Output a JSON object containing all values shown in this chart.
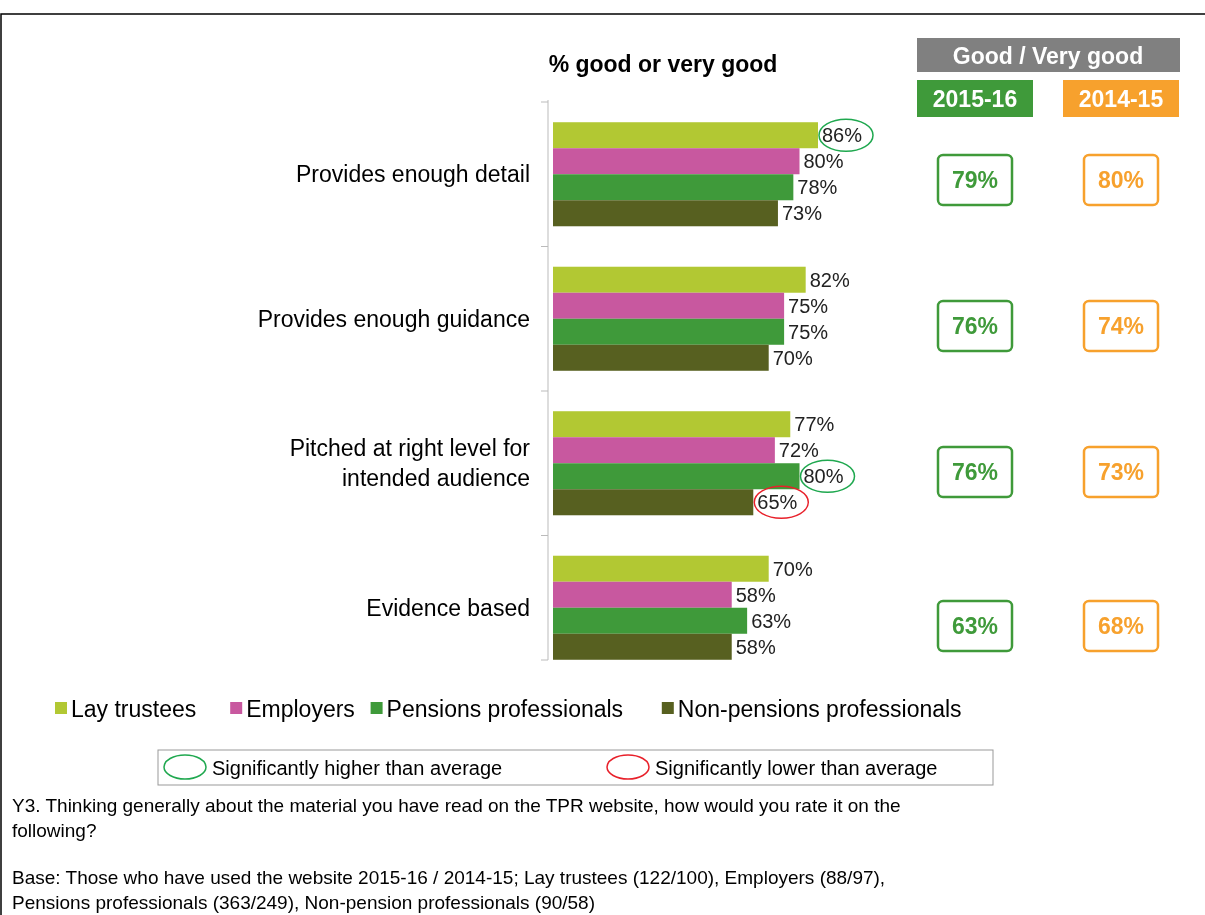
{
  "chart_data": [
    {
      "type": "bar",
      "orientation": "horizontal",
      "title": "% good or very good",
      "categories": [
        "Provides enough detail",
        "Provides enough guidance",
        "Pitched at right level for intended audience",
        "Evidence based"
      ],
      "series": [
        {
          "name": "Lay trustees",
          "color": "#b2c833",
          "values": [
            86,
            82,
            77,
            70
          ],
          "value_labels": [
            "86%",
            "82%",
            "77%",
            "70%"
          ]
        },
        {
          "name": "Employers",
          "color": "#c8589f",
          "values": [
            80,
            75,
            72,
            58
          ],
          "value_labels": [
            "80%",
            "75%",
            "72%",
            "58%"
          ]
        },
        {
          "name": "Pensions professionals",
          "color": "#3f9a3a",
          "values": [
            78,
            75,
            80,
            63
          ],
          "value_labels": [
            "78%",
            "75%",
            "80%",
            "63%"
          ]
        },
        {
          "name": "Non-pensions professionals",
          "color": "#576020",
          "values": [
            73,
            70,
            65,
            58
          ],
          "value_labels": [
            "73%",
            "70%",
            "65%",
            "58%"
          ]
        }
      ],
      "legend": "bottom",
      "annotations": [
        "Significantly higher than average",
        "Significantly lower than average",
        "Y3. Thinking generally about the material you have read on the TPR website, how would you rate it on the following?",
        "Base: Those who have used the website 2015-16 / 2014-15; Lay trustees (122/100), Employers (88/97), Pensions professionals (363/249), Non-pension professionals (90/58)"
      ]
    },
    {
      "type": "other",
      "title": "Good / Very good",
      "annotations": [
        "2015-16",
        "2014-15",
        "79%",
        "80%",
        "76%",
        "74%",
        "76%",
        "73%",
        "63%",
        "68%"
      ]
    }
  ]
}
